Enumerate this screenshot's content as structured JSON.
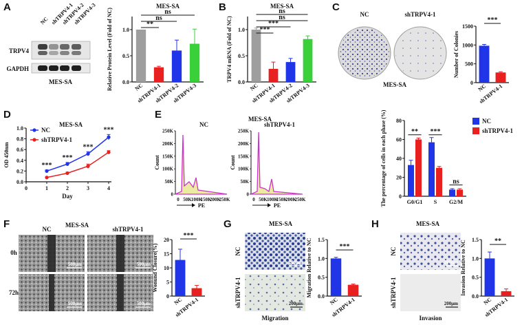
{
  "figure": {
    "panel_letters": [
      "A",
      "B",
      "C",
      "D",
      "E",
      "F",
      "G",
      "H"
    ]
  },
  "colors": {
    "gray": "#9e9e9e",
    "red": "#e8201f",
    "blue": "#2035e8",
    "green": "#3ad03a",
    "purple": "#cc33cc",
    "dark": "#111111"
  },
  "panelA": {
    "blot_header": "MES-SA",
    "lanes": [
      "NC",
      "shTRPV4-1",
      "shTRPV4-2",
      "shTRPV4-3"
    ],
    "rows": [
      "TRPV4",
      "GAPDH"
    ]
  },
  "panelC": {
    "plate_labels": [
      "NC",
      "shTRPV4-1"
    ],
    "plate_caption": "MES-SA"
  },
  "panelE": {
    "header": "MES-SA",
    "hist_titles": [
      "NC",
      "shTRPV4-1"
    ],
    "hist_ylabel": "Count",
    "hist_yticks": [
      "0",
      "50K",
      "100K",
      "150K",
      "200K",
      "250K"
    ],
    "hist_xticks": [
      "0",
      "50K",
      "100K",
      "150K",
      "200K",
      "250K"
    ],
    "hist_xlabel": "PE"
  },
  "panelF": {
    "header": "MES-SA",
    "col_labels": [
      "NC",
      "shTRPV4-1"
    ],
    "row_labels": [
      "0h",
      "72h"
    ],
    "scale_label": "500μm"
  },
  "panelG": {
    "header": "MES-SA",
    "row_labels": [
      "NC",
      "shTRPV4-1"
    ],
    "caption": "Migration",
    "scale_label": "200μm"
  },
  "panelH": {
    "header": "MES-SA",
    "row_labels": [
      "NC",
      "shTRPV4-1"
    ],
    "caption": "Invasion",
    "scale_label": "200μm"
  },
  "chart_data": [
    {
      "id": "A",
      "type": "bar",
      "title": "MES-SA",
      "ylabel": "Relative Protein Level (Fold of NC)",
      "categories": [
        "NC",
        "shTRPV4-1",
        "shTRPV4-2",
        "shTRPV4-3"
      ],
      "values": [
        1.0,
        0.28,
        0.6,
        0.73
      ],
      "errors": [
        0.0,
        0.02,
        0.2,
        0.28
      ],
      "colors": [
        "#9e9e9e",
        "#e8201f",
        "#2035e8",
        "#3ad03a"
      ],
      "ylim": [
        0,
        1.25
      ],
      "yticks": [
        "0.0",
        "0.5",
        "1.0"
      ],
      "annotations": [
        "**",
        "ns",
        "ns"
      ]
    },
    {
      "id": "B",
      "type": "bar",
      "title": "MES-SA",
      "ylabel": "TRPV4 mRNA (Fold of NC)",
      "categories": [
        "NC",
        "shTRPV4-1",
        "shTRPV4-2",
        "shTRPV4-3"
      ],
      "values": [
        1.0,
        0.25,
        0.38,
        0.82
      ],
      "errors": [
        0.03,
        0.13,
        0.07,
        0.06
      ],
      "colors": [
        "#9e9e9e",
        "#e8201f",
        "#2035e8",
        "#3ad03a"
      ],
      "ylim": [
        0,
        1.25
      ],
      "yticks": [
        "0.0",
        "0.5",
        "1.0"
      ],
      "annotations": [
        "***",
        "***",
        "ns",
        "ns"
      ]
    },
    {
      "id": "C",
      "type": "bar",
      "ylabel": "Number of Colonies",
      "categories": [
        "NC",
        "shTRPV4-1"
      ],
      "values": [
        980,
        270
      ],
      "errors": [
        35,
        20
      ],
      "colors": [
        "#2035e8",
        "#e8201f"
      ],
      "ylim": [
        0,
        1500
      ],
      "yticks": [
        "0",
        "500",
        "1000",
        "1500"
      ],
      "annotations": [
        "***"
      ]
    },
    {
      "id": "D",
      "type": "line",
      "title": "MES-SA",
      "xlabel": "Day",
      "ylabel": "OD 450nm",
      "x": [
        1,
        2,
        3,
        4
      ],
      "xticks": [
        "0",
        "1",
        "2",
        "3",
        "4"
      ],
      "ylim": [
        0.0,
        1.0
      ],
      "yticks": [
        "0.0",
        "0.2",
        "0.4",
        "0.6",
        "0.8",
        "1.0"
      ],
      "series": [
        {
          "name": "NC",
          "values": [
            0.2,
            0.33,
            0.52,
            0.83
          ],
          "errors": [
            0.02,
            0.03,
            0.04,
            0.05
          ],
          "color": "#2035e8"
        },
        {
          "name": "shTRPV4-1",
          "values": [
            0.08,
            0.16,
            0.29,
            0.55
          ],
          "errors": [
            0.01,
            0.02,
            0.04,
            0.03
          ],
          "color": "#e8201f"
        }
      ],
      "annotations": [
        "***",
        "***",
        "***",
        "***"
      ]
    },
    {
      "id": "E",
      "type": "bar",
      "ylabel": "The percentage of cells in each phase (%)",
      "categories": [
        "G0/G1",
        "S",
        "G2/M"
      ],
      "series": [
        {
          "name": "NC",
          "values": [
            33,
            57,
            7
          ],
          "errors": [
            5,
            5,
            1
          ],
          "color": "#2035e8"
        },
        {
          "name": "shTRPV4-1",
          "values": [
            60,
            30,
            7
          ],
          "errors": [
            1.5,
            1.5,
            1
          ],
          "color": "#e8201f"
        }
      ],
      "ylim": [
        0,
        80
      ],
      "yticks": [
        "0",
        "20",
        "40",
        "60",
        "80"
      ],
      "annotations": [
        "**",
        "***",
        "ns"
      ]
    },
    {
      "id": "F",
      "type": "bar",
      "ylabel": "Wonund Closure(%)",
      "categories": [
        "NC",
        "shTRPV4-1"
      ],
      "values": [
        12.8,
        2.8
      ],
      "errors": [
        3.8,
        1.0
      ],
      "colors": [
        "#2035e8",
        "#e8201f"
      ],
      "ylim": [
        0,
        20
      ],
      "yticks": [
        "0",
        "5",
        "10",
        "15",
        "20"
      ],
      "annotations": [
        "***"
      ]
    },
    {
      "id": "G",
      "type": "bar",
      "ylabel": "Migration Relative to NC",
      "categories": [
        "NC",
        "shTRPV4-1"
      ],
      "values": [
        1.0,
        0.3
      ],
      "errors": [
        0.03,
        0.02
      ],
      "colors": [
        "#2035e8",
        "#e8201f"
      ],
      "ylim": [
        0,
        1.5
      ],
      "yticks": [
        "0.0",
        "0.5",
        "1.0",
        "1.5"
      ],
      "annotations": [
        "***"
      ]
    },
    {
      "id": "H",
      "type": "bar",
      "ylabel": "Invasion Relative to NC",
      "categories": [
        "NC",
        "shTRPV4-1"
      ],
      "values": [
        1.0,
        0.13
      ],
      "errors": [
        0.17,
        0.06
      ],
      "colors": [
        "#2035e8",
        "#e8201f"
      ],
      "ylim": [
        0,
        1.5
      ],
      "yticks": [
        "0.0",
        "0.5",
        "1.0",
        "1.5"
      ],
      "annotations": [
        "**"
      ]
    }
  ]
}
